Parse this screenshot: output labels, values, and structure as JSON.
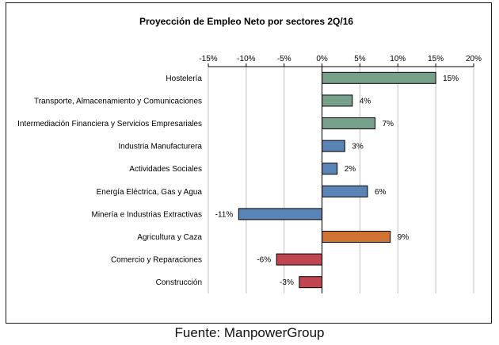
{
  "chart_data": {
    "type": "bar",
    "orientation": "horizontal",
    "title": "Proyección de Empleo Neto por sectores 2Q/16",
    "categories": [
      "Hostelería",
      "Transporte, Almacenamiento y Comunicaciones",
      "Intermediación Financiera y Servicios Empresariales",
      "Industria Manufacturera",
      "Actividades Sociales",
      "Energía Eléctrica, Gas y Agua",
      "Minería e Industrias Extractivas",
      "Agricultura y Caza",
      "Comercio y Reparaciones",
      "Construcción"
    ],
    "values": [
      15,
      4,
      7,
      3,
      2,
      6,
      -11,
      9,
      -6,
      -3
    ],
    "value_labels": [
      "15%",
      "4%",
      "7%",
      "3%",
      "2%",
      "6%",
      "-11%",
      "9%",
      "-6%",
      "-3%"
    ],
    "bar_colors": [
      "#77a08a",
      "#77a08a",
      "#77a08a",
      "#5b84b6",
      "#5b84b6",
      "#5b84b6",
      "#5b84b6",
      "#cf7232",
      "#bf4651",
      "#bf4651"
    ],
    "xlim": [
      -15,
      20
    ],
    "ticks": [
      -15,
      -10,
      -5,
      0,
      5,
      10,
      15,
      20
    ],
    "tick_labels": [
      "-15%",
      "-10%",
      "-5%",
      "0%",
      "5%",
      "10%",
      "15%",
      "20%"
    ],
    "axis_position": "top",
    "xlabel": "",
    "ylabel": "",
    "grid": true,
    "legend": "none"
  },
  "source": "Fuente: ManpowerGroup",
  "colors": {
    "gridline": "#c0c0c0",
    "bar_border": "#000000",
    "text": "#000000"
  }
}
